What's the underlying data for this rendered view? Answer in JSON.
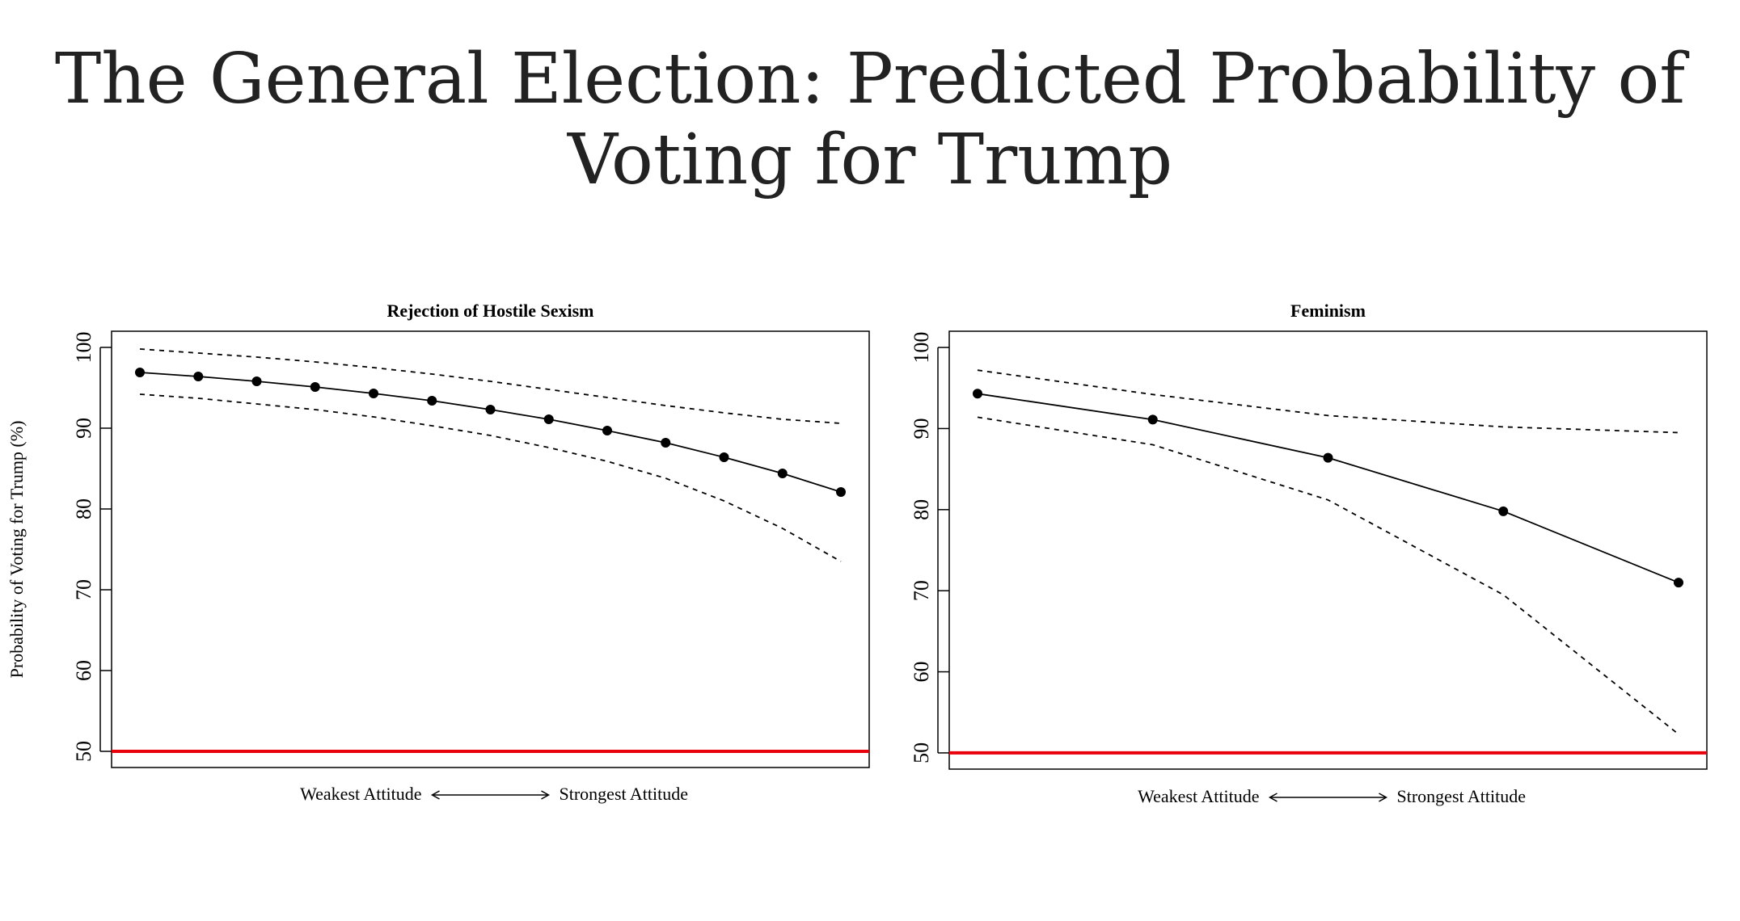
{
  "page": {
    "title": "The General Election: Predicted Probability of Voting for Trump"
  },
  "colors": {
    "line": "#000000",
    "reference_line": "#e8000b"
  },
  "chart_data": [
    {
      "type": "line",
      "title": "Rejection of Hostile Sexism",
      "ylabel": "Probability of Voting for Trump (%)",
      "xlabel_left": "Weakest Attitude",
      "xlabel_right": "Strongest Attitude",
      "ylim": [
        48,
        102
      ],
      "yticks": [
        50,
        60,
        70,
        80,
        90,
        100
      ],
      "x": [
        1,
        2,
        3,
        4,
        5,
        6,
        7,
        8,
        9,
        10,
        11,
        12,
        13
      ],
      "series": [
        {
          "role": "estimate",
          "style": "solid-with-points",
          "values": [
            96.9,
            96.4,
            95.8,
            95.1,
            94.3,
            93.4,
            92.3,
            91.1,
            89.7,
            88.2,
            86.4,
            84.4,
            82.1
          ]
        },
        {
          "role": "upper",
          "style": "dashed",
          "values": [
            99.8,
            99.3,
            98.8,
            98.2,
            97.5,
            96.7,
            95.8,
            94.8,
            93.8,
            92.8,
            91.9,
            91.1,
            90.6
          ]
        },
        {
          "role": "lower",
          "style": "dashed",
          "values": [
            94.2,
            93.7,
            93.0,
            92.3,
            91.4,
            90.3,
            89.1,
            87.6,
            85.9,
            83.8,
            81.0,
            77.6,
            73.5
          ]
        }
      ],
      "reference_line": 50
    },
    {
      "type": "line",
      "title": "Feminism",
      "ylabel": "",
      "xlabel_left": "Weakest Attitude",
      "xlabel_right": "Strongest Attitude",
      "ylim": [
        48,
        102
      ],
      "yticks": [
        50,
        60,
        70,
        80,
        90,
        100
      ],
      "x": [
        1,
        2,
        3,
        4,
        5
      ],
      "series": [
        {
          "role": "estimate",
          "style": "solid-with-points",
          "values": [
            94.3,
            91.1,
            86.4,
            79.8,
            71.0
          ]
        },
        {
          "role": "upper",
          "style": "dashed",
          "values": [
            97.2,
            94.2,
            91.6,
            90.2,
            89.5
          ]
        },
        {
          "role": "lower",
          "style": "dashed",
          "values": [
            91.4,
            88.0,
            81.2,
            69.5,
            52.3
          ]
        }
      ],
      "reference_line": 50
    }
  ]
}
